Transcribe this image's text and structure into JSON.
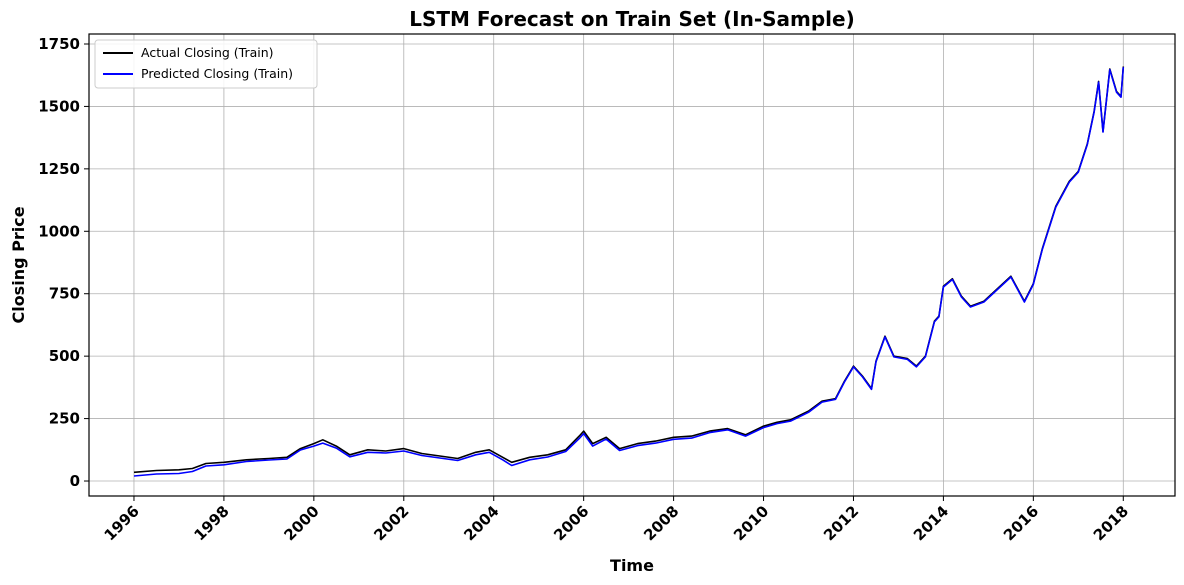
{
  "chart_data": {
    "type": "line",
    "title": "LSTM Forecast on Train Set (In-Sample)",
    "xlabel": "Time",
    "ylabel": "Closing Price",
    "xlim": [
      1995.0,
      2019.15
    ],
    "ylim": [
      -60,
      1790
    ],
    "x_ticks": [
      1996,
      1998,
      2000,
      2002,
      2004,
      2006,
      2008,
      2010,
      2012,
      2014,
      2016,
      2018
    ],
    "x_tick_labels": [
      "1996",
      "1998",
      "2000",
      "2002",
      "2004",
      "2006",
      "2008",
      "2010",
      "2012",
      "2014",
      "2016",
      "2018"
    ],
    "y_ticks": [
      0,
      250,
      500,
      750,
      1000,
      1250,
      1500,
      1750
    ],
    "y_tick_labels": [
      "0",
      "250",
      "500",
      "750",
      "1000",
      "1250",
      "1500",
      "1750"
    ],
    "grid": true,
    "legend_position": "top-left",
    "x_tick_rotation": 45,
    "series": [
      {
        "name": "Actual Closing (Train)",
        "color": "#000000",
        "points": [
          [
            1996.0,
            35
          ],
          [
            1996.5,
            42
          ],
          [
            1997.0,
            45
          ],
          [
            1997.3,
            50
          ],
          [
            1997.6,
            70
          ],
          [
            1998.0,
            75
          ],
          [
            1998.5,
            85
          ],
          [
            1999.0,
            90
          ],
          [
            1999.4,
            95
          ],
          [
            1999.7,
            130
          ],
          [
            2000.0,
            150
          ],
          [
            2000.2,
            165
          ],
          [
            2000.5,
            140
          ],
          [
            2000.8,
            105
          ],
          [
            2001.2,
            125
          ],
          [
            2001.6,
            120
          ],
          [
            2002.0,
            130
          ],
          [
            2002.4,
            110
          ],
          [
            2002.8,
            100
          ],
          [
            2003.2,
            90
          ],
          [
            2003.6,
            115
          ],
          [
            2003.9,
            125
          ],
          [
            2004.2,
            95
          ],
          [
            2004.4,
            75
          ],
          [
            2004.8,
            95
          ],
          [
            2005.2,
            105
          ],
          [
            2005.6,
            125
          ],
          [
            2005.9,
            180
          ],
          [
            2006.0,
            200
          ],
          [
            2006.2,
            150
          ],
          [
            2006.5,
            175
          ],
          [
            2006.8,
            130
          ],
          [
            2007.2,
            150
          ],
          [
            2007.6,
            160
          ],
          [
            2008.0,
            175
          ],
          [
            2008.4,
            180
          ],
          [
            2008.8,
            200
          ],
          [
            2009.2,
            210
          ],
          [
            2009.6,
            185
          ],
          [
            2010.0,
            220
          ],
          [
            2010.3,
            235
          ],
          [
            2010.6,
            245
          ],
          [
            2011.0,
            280
          ],
          [
            2011.3,
            320
          ],
          [
            2011.6,
            330
          ],
          [
            2011.8,
            400
          ],
          [
            2012.0,
            460
          ],
          [
            2012.2,
            420
          ],
          [
            2012.4,
            370
          ],
          [
            2012.5,
            480
          ],
          [
            2012.7,
            580
          ],
          [
            2012.9,
            500
          ],
          [
            2013.2,
            490
          ],
          [
            2013.4,
            460
          ],
          [
            2013.6,
            500
          ],
          [
            2013.8,
            640
          ],
          [
            2013.9,
            660
          ],
          [
            2014.0,
            780
          ],
          [
            2014.2,
            810
          ],
          [
            2014.4,
            740
          ],
          [
            2014.6,
            700
          ],
          [
            2014.9,
            720
          ],
          [
            2015.2,
            770
          ],
          [
            2015.5,
            820
          ],
          [
            2015.8,
            720
          ],
          [
            2016.0,
            790
          ],
          [
            2016.2,
            930
          ],
          [
            2016.5,
            1100
          ],
          [
            2016.8,
            1200
          ],
          [
            2017.0,
            1240
          ],
          [
            2017.2,
            1350
          ],
          [
            2017.35,
            1480
          ],
          [
            2017.45,
            1600
          ],
          [
            2017.55,
            1400
          ],
          [
            2017.7,
            1650
          ],
          [
            2017.85,
            1560
          ],
          [
            2017.95,
            1540
          ],
          [
            2018.0,
            1660
          ]
        ]
      },
      {
        "name": "Predicted Closing (Train)",
        "color": "#0000ff",
        "points": [
          [
            1996.0,
            20
          ],
          [
            1996.5,
            28
          ],
          [
            1997.0,
            30
          ],
          [
            1997.3,
            38
          ],
          [
            1997.6,
            60
          ],
          [
            1998.0,
            65
          ],
          [
            1998.5,
            78
          ],
          [
            1999.0,
            84
          ],
          [
            1999.4,
            88
          ],
          [
            1999.7,
            124
          ],
          [
            2000.0,
            140
          ],
          [
            2000.2,
            152
          ],
          [
            2000.5,
            132
          ],
          [
            2000.8,
            97
          ],
          [
            2001.2,
            115
          ],
          [
            2001.6,
            112
          ],
          [
            2002.0,
            120
          ],
          [
            2002.4,
            102
          ],
          [
            2002.8,
            92
          ],
          [
            2003.2,
            82
          ],
          [
            2003.6,
            105
          ],
          [
            2003.9,
            115
          ],
          [
            2004.2,
            85
          ],
          [
            2004.4,
            62
          ],
          [
            2004.8,
            85
          ],
          [
            2005.2,
            96
          ],
          [
            2005.6,
            118
          ],
          [
            2005.9,
            170
          ],
          [
            2006.0,
            190
          ],
          [
            2006.2,
            140
          ],
          [
            2006.5,
            168
          ],
          [
            2006.8,
            122
          ],
          [
            2007.2,
            142
          ],
          [
            2007.6,
            152
          ],
          [
            2008.0,
            167
          ],
          [
            2008.4,
            172
          ],
          [
            2008.8,
            194
          ],
          [
            2009.2,
            205
          ],
          [
            2009.6,
            180
          ],
          [
            2010.0,
            214
          ],
          [
            2010.3,
            230
          ],
          [
            2010.6,
            240
          ],
          [
            2011.0,
            275
          ],
          [
            2011.3,
            316
          ],
          [
            2011.6,
            327
          ],
          [
            2011.8,
            397
          ],
          [
            2012.0,
            457
          ],
          [
            2012.2,
            417
          ],
          [
            2012.4,
            367
          ],
          [
            2012.5,
            477
          ],
          [
            2012.7,
            577
          ],
          [
            2012.9,
            497
          ],
          [
            2013.2,
            487
          ],
          [
            2013.4,
            457
          ],
          [
            2013.6,
            497
          ],
          [
            2013.8,
            637
          ],
          [
            2013.9,
            657
          ],
          [
            2014.0,
            777
          ],
          [
            2014.2,
            807
          ],
          [
            2014.4,
            737
          ],
          [
            2014.6,
            697
          ],
          [
            2014.9,
            717
          ],
          [
            2015.2,
            767
          ],
          [
            2015.5,
            817
          ],
          [
            2015.8,
            717
          ],
          [
            2016.0,
            787
          ],
          [
            2016.2,
            927
          ],
          [
            2016.5,
            1097
          ],
          [
            2016.8,
            1197
          ],
          [
            2017.0,
            1237
          ],
          [
            2017.2,
            1347
          ],
          [
            2017.35,
            1477
          ],
          [
            2017.45,
            1597
          ],
          [
            2017.55,
            1397
          ],
          [
            2017.7,
            1647
          ],
          [
            2017.85,
            1557
          ],
          [
            2017.95,
            1537
          ],
          [
            2018.0,
            1657
          ]
        ]
      }
    ]
  }
}
